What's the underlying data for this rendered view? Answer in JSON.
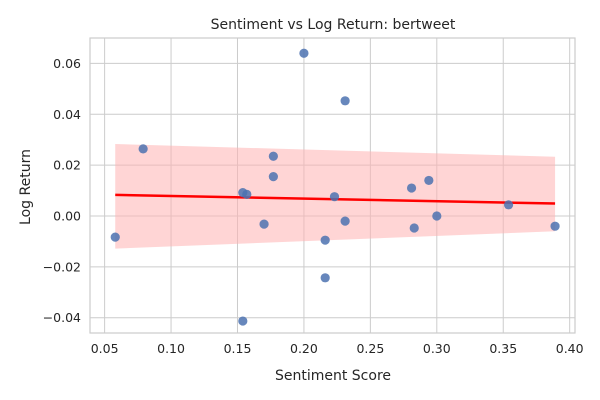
{
  "chart_data": {
    "type": "scatter",
    "title": "Sentiment vs Log Return: bertweet",
    "xlabel": "Sentiment Score",
    "ylabel": "Log Return",
    "xlim": [
      0.039,
      0.404
    ],
    "ylim": [
      -0.046,
      0.07
    ],
    "grid": true,
    "x_ticks": [
      0.05,
      0.1,
      0.15,
      0.2,
      0.25,
      0.3,
      0.35,
      0.4
    ],
    "x_tick_labels": [
      "0.05",
      "0.10",
      "0.15",
      "0.20",
      "0.25",
      "0.30",
      "0.35",
      "0.40"
    ],
    "y_ticks": [
      -0.04,
      -0.02,
      0.0,
      0.02,
      0.04,
      0.06
    ],
    "y_tick_labels": [
      "−0.04",
      "−0.02",
      "0.00",
      "0.02",
      "0.04",
      "0.06"
    ],
    "series": [
      {
        "x": [
          0.058,
          0.079,
          0.154,
          0.157,
          0.154,
          0.17,
          0.177,
          0.177,
          0.2,
          0.216,
          0.216,
          0.223,
          0.231,
          0.231,
          0.281,
          0.283,
          0.294,
          0.3,
          0.354,
          0.389
        ],
        "y": [
          -0.0083,
          0.0264,
          0.0092,
          0.0085,
          -0.0413,
          -0.0032,
          0.0235,
          0.0155,
          0.064,
          -0.0095,
          -0.0243,
          0.0076,
          0.0453,
          -0.002,
          0.011,
          -0.0047,
          0.014,
          0.0,
          0.0044,
          -0.004
        ],
        "color": "#4c72b0"
      }
    ],
    "regression": {
      "x_range": [
        0.058,
        0.389
      ],
      "y_range": [
        0.0083,
        0.0049
      ],
      "color": "#ff0000",
      "ci_upper": [
        0.0283,
        0.0233
      ],
      "ci_lower": [
        -0.0128,
        -0.006
      ],
      "ci_color": "#ffb3b3"
    }
  }
}
